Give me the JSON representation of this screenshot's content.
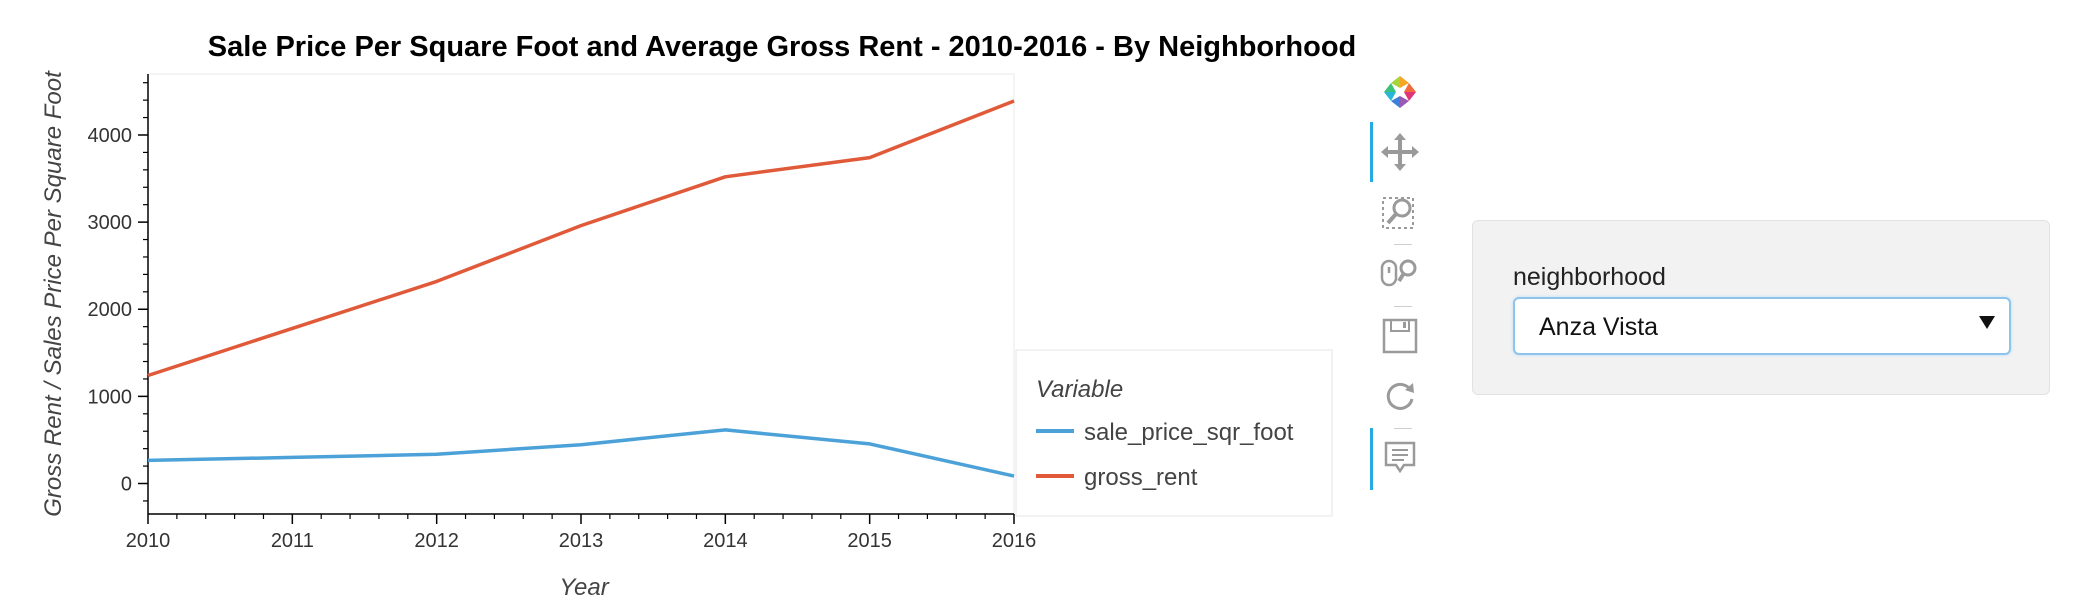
{
  "chart_data": {
    "type": "line",
    "title": "Sale Price Per Square Foot and Average Gross Rent - 2010-2016 - By Neighborhood",
    "xlabel": "Year",
    "ylabel": "Gross Rent / Sales Price Per Square Foot",
    "x": [
      2010,
      2011,
      2012,
      2013,
      2014,
      2015,
      2016
    ],
    "xlim": [
      2010,
      2016
    ],
    "ylim": [
      -350,
      4700
    ],
    "y_ticks": [
      0,
      1000,
      2000,
      3000,
      4000
    ],
    "legend_title": "Variable",
    "legend_position": "right",
    "grid": false,
    "series": [
      {
        "name": "sale_price_sqr_foot",
        "color": "#4ca2d8",
        "values": [
          265,
          300,
          335,
          445,
          615,
          455,
          85
        ]
      },
      {
        "name": "gross_rent",
        "color": "#e05a3a",
        "values": [
          1240,
          1780,
          2320,
          2960,
          3520,
          3740,
          4390
        ]
      }
    ]
  },
  "toolbar": {
    "tools": [
      {
        "name": "bokeh-logo-icon",
        "interactable": true,
        "active": false
      },
      {
        "name": "pan-icon",
        "interactable": true,
        "active": true
      },
      {
        "name": "box-zoom-icon",
        "interactable": true,
        "active": false
      },
      {
        "name": "wheel-zoom-icon",
        "interactable": true,
        "active": false
      },
      {
        "name": "save-icon",
        "interactable": true,
        "active": false
      },
      {
        "name": "reset-icon",
        "interactable": true,
        "active": false
      },
      {
        "name": "hover-icon",
        "interactable": true,
        "active": true
      }
    ]
  },
  "widget": {
    "label": "neighborhood",
    "selected": "Anza Vista"
  }
}
